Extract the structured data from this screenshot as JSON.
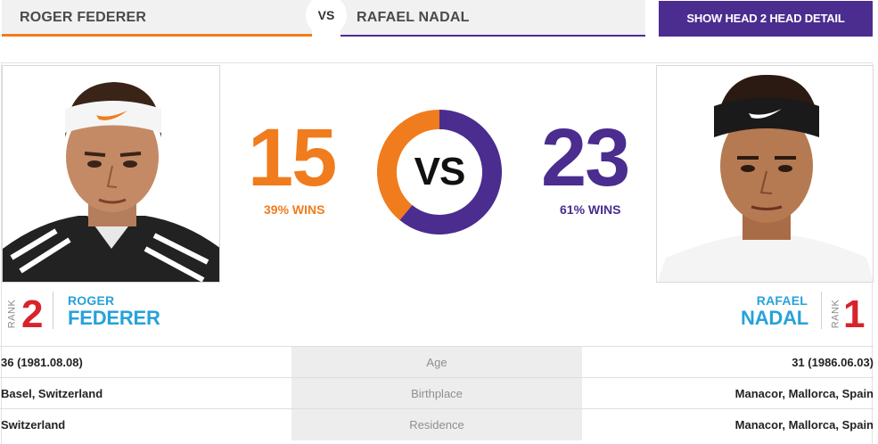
{
  "header": {
    "player1_name": "ROGER FEDERER",
    "vs_label": "VS",
    "player2_name": "RAFAEL NADAL",
    "h2h_button_label": "SHOW HEAD 2 HEAD DETAIL"
  },
  "colors": {
    "player1": "#f07c1e",
    "player2": "#4a2d8f",
    "name_blue": "#27a2d9",
    "rank_red": "#d8232a"
  },
  "player1": {
    "wins": "15",
    "wins_pct_label": "39% WINS",
    "wins_fraction": 0.39,
    "rank_word": "RANK",
    "rank": "2",
    "first_name": "ROGER",
    "last_name": "FEDERER",
    "photo_icon": "player-photo-federer"
  },
  "player2": {
    "wins": "23",
    "wins_pct_label": "61% WINS",
    "wins_fraction": 0.61,
    "rank_word": "RANK",
    "rank": "1",
    "first_name": "RAFAEL",
    "last_name": "NADAL",
    "photo_icon": "player-photo-nadal"
  },
  "center_label": "VS",
  "stats": [
    {
      "label": "Age",
      "p1": "36 (1981.08.08)",
      "p2": "31 (1986.06.03)"
    },
    {
      "label": "Birthplace",
      "p1": "Basel, Switzerland",
      "p2": "Manacor, Mallorca, Spain"
    },
    {
      "label": "Residence",
      "p1": "Switzerland",
      "p2": "Manacor, Mallorca, Spain"
    }
  ]
}
